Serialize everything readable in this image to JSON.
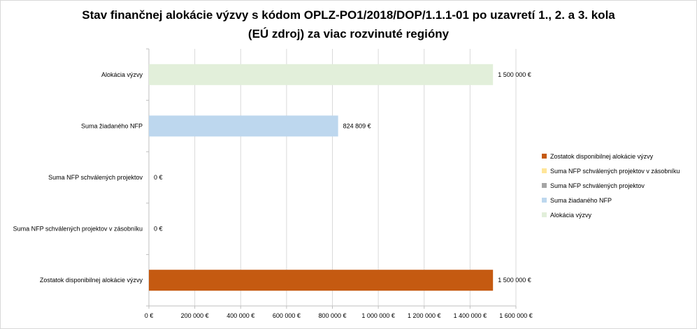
{
  "title_line1": "Stav finančnej alokácie výzvy s kódom OPLZ-PO1/2018/DOP/1.1.1-01 po uzavretí 1., 2. a 3. kola",
  "title_line2": "(EÚ zdroj) za viac rozvinuté regióny",
  "chart_data": {
    "type": "bar",
    "orientation": "horizontal",
    "categories": [
      "Alokácia výzvy",
      "Suma žiadaného NFP",
      "Suma NFP schválených projektov",
      "Suma NFP schválených projektov v zásobníku",
      "Zostatok disponibilnej alokácie výzvy"
    ],
    "values": [
      1500000,
      824809,
      0,
      0,
      1500000
    ],
    "data_labels": [
      "1 500 000 €",
      "824 809 €",
      "0 €",
      "0 €",
      "1 500 000 €"
    ],
    "colors": [
      "#e2efda",
      "#bdd7ee",
      "#a5a5a5",
      "#ffe699",
      "#c55a11"
    ],
    "xlim": [
      0,
      1600000
    ],
    "ticks": [
      0,
      200000,
      400000,
      600000,
      800000,
      1000000,
      1200000,
      1400000,
      1600000
    ],
    "tick_labels": [
      "0 €",
      "200 000 €",
      "400 000 €",
      "600 000 €",
      "800 000 €",
      "1 000 000 €",
      "1 200 000 €",
      "1 400 000 €",
      "1 600 000 €"
    ],
    "gridlines": true,
    "legend_position": "right",
    "legend": [
      {
        "label": "Zostatok disponibilnej alokácie výzvy",
        "color": "#c55a11"
      },
      {
        "label": "Suma NFP schválených projektov v zásobníku",
        "color": "#ffe699"
      },
      {
        "label": "Suma NFP schválených projektov",
        "color": "#a5a5a5"
      },
      {
        "label": "Suma žiadaného NFP",
        "color": "#bdd7ee"
      },
      {
        "label": "Alokácia výzvy",
        "color": "#e2efda"
      }
    ]
  }
}
